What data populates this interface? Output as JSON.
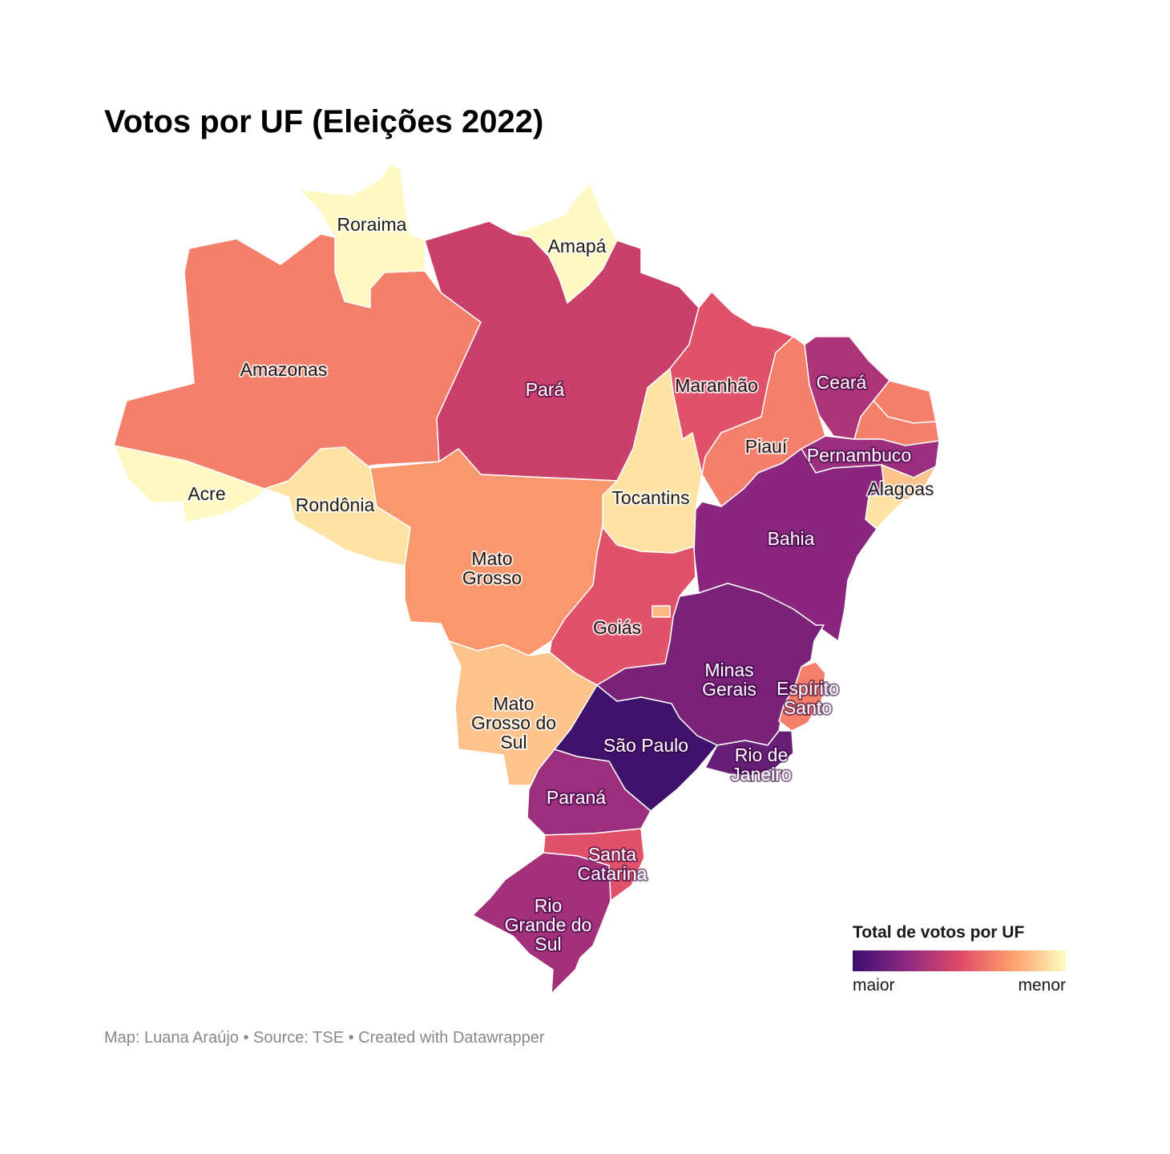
{
  "title": "Votos por UF (Eleições 2022)",
  "legend": {
    "title": "Total de votos por UF",
    "low_label": "maior",
    "high_label": "menor",
    "gradient": [
      "#3b0f70",
      "#8c2981",
      "#de4968",
      "#fe9f6d",
      "#fcfdbf"
    ]
  },
  "footer": "Map: Luana Araújo • Source: TSE • Created with Datawrapper",
  "states": [
    {
      "key": "roraima",
      "label": [
        "Roraima"
      ],
      "color": "#fef9c2"
    },
    {
      "key": "amapa",
      "label": [
        "Amapá"
      ],
      "color": "#fef9c2"
    },
    {
      "key": "amazonas",
      "label": [
        "Amazonas"
      ],
      "color": "#f47f6b"
    },
    {
      "key": "para",
      "label": [
        "Pará"
      ],
      "color": "#c9406b"
    },
    {
      "key": "acre",
      "label": [
        "Acre"
      ],
      "color": "#fef9c2"
    },
    {
      "key": "rondonia",
      "label": [
        "Rondônia"
      ],
      "color": "#fee3a5"
    },
    {
      "key": "mato-grosso",
      "label": [
        "Mato",
        "Grosso"
      ],
      "color": "#f9986e"
    },
    {
      "key": "tocantins",
      "label": [
        "Tocantins"
      ],
      "color": "#fee3a5"
    },
    {
      "key": "maranhao",
      "label": [
        "Maranhão"
      ],
      "color": "#e0516a"
    },
    {
      "key": "piaui",
      "label": [
        "Piauí"
      ],
      "color": "#f47f6b"
    },
    {
      "key": "ceara",
      "label": [
        "Ceará"
      ],
      "color": "#ac3478"
    },
    {
      "key": "rio-grande-do-norte",
      "label": [],
      "color": "#f47f6b"
    },
    {
      "key": "paraiba",
      "label": [],
      "color": "#f47f6b"
    },
    {
      "key": "pernambuco",
      "label": [
        "Pernambuco"
      ],
      "color": "#9c2e7e"
    },
    {
      "key": "alagoas",
      "label": [
        "Alagoas"
      ],
      "color": "#fdc38c"
    },
    {
      "key": "sergipe",
      "label": [],
      "color": "#fee3a5"
    },
    {
      "key": "bahia",
      "label": [
        "Bahia"
      ],
      "color": "#8a267d"
    },
    {
      "key": "goias",
      "label": [
        "Goiás"
      ],
      "color": "#e0516a"
    },
    {
      "key": "distrito-federal",
      "label": [],
      "color": "#fdb983"
    },
    {
      "key": "minas-gerais",
      "label": [
        "Minas",
        "Gerais"
      ],
      "color": "#7a2178"
    },
    {
      "key": "espirito-santo",
      "label": [
        "Espírito",
        "Santo"
      ],
      "color": "#f47f6b"
    },
    {
      "key": "mato-grosso-do-sul",
      "label": [
        "Mato",
        "Grosso do",
        "Sul"
      ],
      "color": "#fdc38c"
    },
    {
      "key": "sao-paulo",
      "label": [
        "São Paulo"
      ],
      "color": "#41126c"
    },
    {
      "key": "rio-de-janeiro",
      "label": [
        "Rio de",
        "Janeiro"
      ],
      "color": "#661e77"
    },
    {
      "key": "parana",
      "label": [
        "Paraná"
      ],
      "color": "#9c2e7e"
    },
    {
      "key": "santa-catarina",
      "label": [
        "Santa",
        "Catarina"
      ],
      "color": "#e0516a"
    },
    {
      "key": "rio-grande-do-sul",
      "label": [
        "Rio",
        "Grande do",
        "Sul"
      ],
      "color": "#a3307a"
    }
  ]
}
